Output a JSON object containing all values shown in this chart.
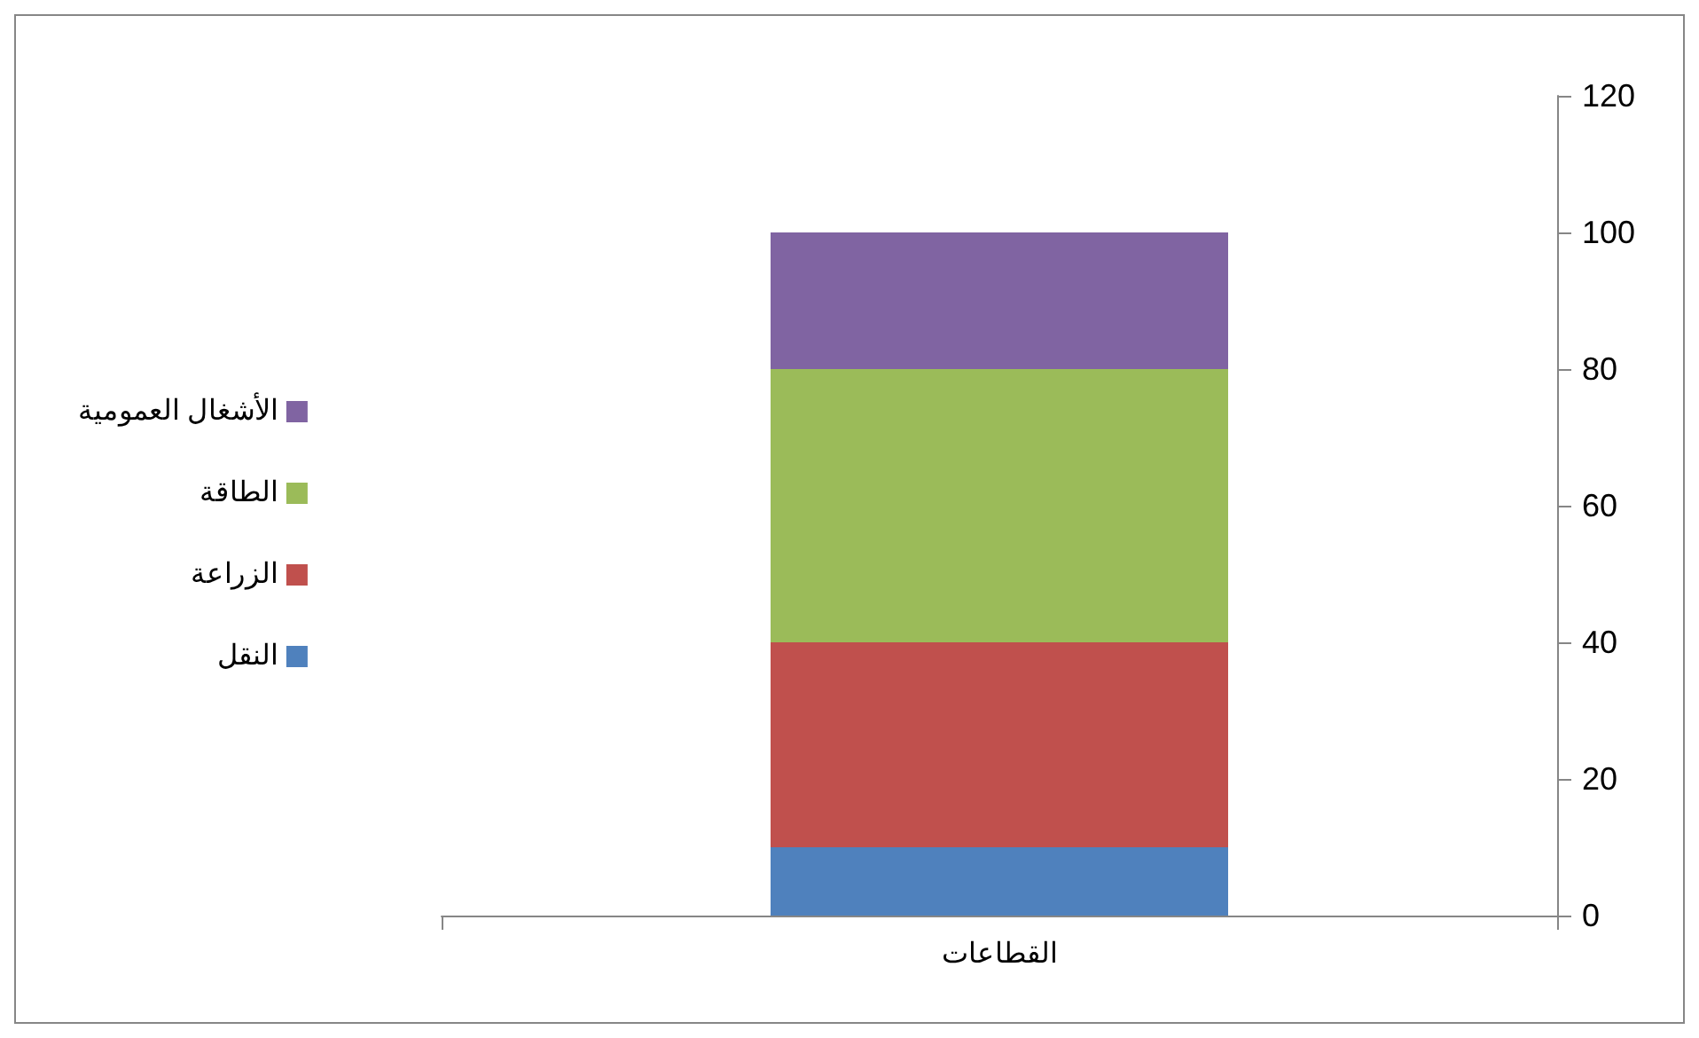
{
  "chart_data": {
    "type": "bar",
    "stacked": true,
    "categories": [
      "القطاعات"
    ],
    "series": [
      {
        "name": "النقل",
        "color": "#4f81bd",
        "values": [
          10
        ]
      },
      {
        "name": "الزراعة",
        "color": "#c0504d",
        "values": [
          30
        ]
      },
      {
        "name": "الطاقة",
        "color": "#9bbb59",
        "values": [
          40
        ]
      },
      {
        "name": "الأشغال العمومية",
        "color": "#8064a2",
        "values": [
          20
        ]
      }
    ],
    "ylim": [
      0,
      120
    ],
    "yticks": [
      0,
      20,
      40,
      60,
      80,
      100,
      120
    ],
    "grid": false,
    "legend": "left"
  }
}
